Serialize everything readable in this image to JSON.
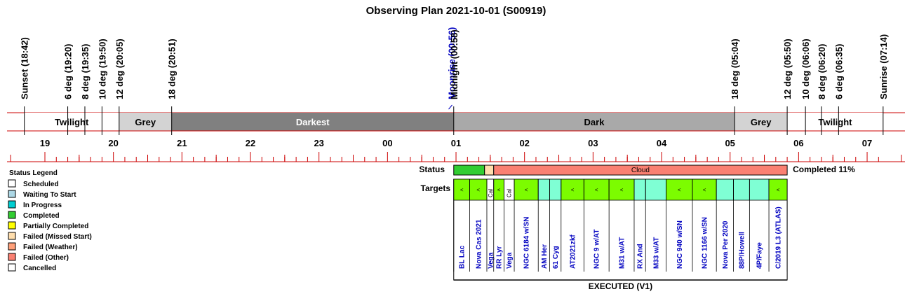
{
  "title": "Observing Plan 2021-10-01 (S00919)",
  "events": [
    {
      "label": "Sunset (18:42)",
      "time": "18:42",
      "color": "#000000"
    },
    {
      "label": "6 deg (19:20)",
      "time": "19:20",
      "color": "#000000"
    },
    {
      "label": "8 deg (19:35)",
      "time": "19:35",
      "color": "#000000"
    },
    {
      "label": "10 deg (19:50)",
      "time": "19:50",
      "color": "#000000"
    },
    {
      "label": "12 deg (20:05)",
      "time": "20:05",
      "color": "#000000"
    },
    {
      "label": "18 deg (20:51)",
      "time": "20:51",
      "color": "#000000"
    },
    {
      "label": "Moonrise (00:56)",
      "time": "00:56",
      "color": "#0000c0"
    },
    {
      "label": "Midnight (00:58)",
      "time": "00:58",
      "color": "#000000"
    },
    {
      "label": "18 deg (05:04)",
      "time": "05:04",
      "color": "#000000"
    },
    {
      "label": "12 deg (05:50)",
      "time": "05:50",
      "color": "#000000"
    },
    {
      "label": "10 deg (06:06)",
      "time": "06:06",
      "color": "#000000"
    },
    {
      "label": "8 deg (06:20)",
      "time": "06:20",
      "color": "#000000"
    },
    {
      "label": "6 deg (06:35)",
      "time": "06:35",
      "color": "#000000"
    },
    {
      "label": "Sunrise (07:14)",
      "time": "07:14",
      "color": "#000000"
    }
  ],
  "bands": [
    {
      "label": "Twilight",
      "start": "18:42",
      "end": "20:05",
      "fill": "#ffffff",
      "text": "#000000"
    },
    {
      "label": "Grey",
      "start": "20:05",
      "end": "20:51",
      "fill": "#d3d3d3",
      "text": "#000000"
    },
    {
      "label": "Darkest",
      "start": "20:51",
      "end": "00:58",
      "fill": "#808080",
      "text": "#ffffff"
    },
    {
      "label": "Dark",
      "start": "00:58",
      "end": "05:04",
      "fill": "#a9a9a9",
      "text": "#000000"
    },
    {
      "label": "Grey",
      "start": "05:04",
      "end": "05:50",
      "fill": "#d3d3d3",
      "text": "#000000"
    },
    {
      "label": "Twilight",
      "start": "05:50",
      "end": "07:14",
      "fill": "#ffffff",
      "text": "#000000"
    }
  ],
  "hours": [
    "19",
    "20",
    "21",
    "22",
    "23",
    "00",
    "01",
    "02",
    "03",
    "04",
    "05",
    "06",
    "07"
  ],
  "status_label": "Status",
  "targets_label": "Targets",
  "status_segments": [
    {
      "start": "00:58",
      "end": "01:25",
      "status": "Completed",
      "text": ""
    },
    {
      "start": "01:25",
      "end": "01:33",
      "status": "Failed (Missed Start)",
      "text": ""
    },
    {
      "start": "01:33",
      "end": "05:50",
      "status": "Failed (Other)",
      "text": "Cloud"
    }
  ],
  "completion_text": "Completed 11%",
  "targets": [
    {
      "name": "BL Lac",
      "start": "00:58",
      "end": "01:12",
      "fill": "#7cfc00",
      "mark": "<"
    },
    {
      "name": "Nova Cas 2021",
      "start": "01:12",
      "end": "01:27",
      "fill": "#7cfc00",
      "mark": "<"
    },
    {
      "name": "Vega",
      "start": "01:27",
      "end": "01:33",
      "fill": "#ffffff",
      "mark": "Cal"
    },
    {
      "name": "RR Lyr",
      "start": "01:33",
      "end": "01:42",
      "fill": "#7cfc00",
      "mark": "<"
    },
    {
      "name": "Vega",
      "start": "01:42",
      "end": "01:51",
      "fill": "#ffffff",
      "mark": "Cal"
    },
    {
      "name": "NGC 6184 w/SN",
      "start": "01:51",
      "end": "02:12",
      "fill": "#7cfc00",
      "mark": "<"
    },
    {
      "name": "AM Her",
      "start": "02:12",
      "end": "02:22",
      "fill": "#7fffd4",
      "mark": ""
    },
    {
      "name": "61 Cyg",
      "start": "02:22",
      "end": "02:32",
      "fill": "#7fffd4",
      "mark": ""
    },
    {
      "name": "AT2021zkf",
      "start": "02:32",
      "end": "02:52",
      "fill": "#7cfc00",
      "mark": "<"
    },
    {
      "name": "NGC 9 w/AT",
      "start": "02:52",
      "end": "03:14",
      "fill": "#7cfc00",
      "mark": "<"
    },
    {
      "name": "M31 w/AT",
      "start": "03:14",
      "end": "03:36",
      "fill": "#7cfc00",
      "mark": "<"
    },
    {
      "name": "RX And",
      "start": "03:36",
      "end": "03:46",
      "fill": "#7fffd4",
      "mark": ""
    },
    {
      "name": "M33 w/AT",
      "start": "03:46",
      "end": "04:04",
      "fill": "#7fffd4",
      "mark": ""
    },
    {
      "name": "NGC 940 w/SN",
      "start": "04:04",
      "end": "04:27",
      "fill": "#7cfc00",
      "mark": "<"
    },
    {
      "name": "NGC 1166 w/SN",
      "start": "04:27",
      "end": "04:48",
      "fill": "#7cfc00",
      "mark": "<"
    },
    {
      "name": "Nova Per 2020",
      "start": "04:48",
      "end": "05:03",
      "fill": "#7fffd4",
      "mark": ""
    },
    {
      "name": "88P/Howell",
      "start": "05:03",
      "end": "05:17",
      "fill": "#7fffd4",
      "mark": ""
    },
    {
      "name": "4P/Faye",
      "start": "05:17",
      "end": "05:34",
      "fill": "#7fffd4",
      "mark": ""
    },
    {
      "name": "C/2019 L3 (ATLAS)",
      "start": "05:34",
      "end": "05:50",
      "fill": "#7cfc00",
      "mark": "<"
    }
  ],
  "executed_label": "EXECUTED (V1)",
  "legend": {
    "title": "Status Legend",
    "items": [
      {
        "label": "Scheduled",
        "color": "#ffffff"
      },
      {
        "label": "Waiting To Start",
        "color": "#add8e6"
      },
      {
        "label": "In Progress",
        "color": "#00ced1"
      },
      {
        "label": "Completed",
        "color": "#32cd32"
      },
      {
        "label": "Partially Completed",
        "color": "#ffff00"
      },
      {
        "label": "Failed (Missed Start)",
        "color": "#ffdead"
      },
      {
        "label": "Failed (Weather)",
        "color": "#ffa07a"
      },
      {
        "label": "Failed (Other)",
        "color": "#fa8072"
      },
      {
        "label": "Cancelled",
        "color": "#ffffff"
      }
    ]
  }
}
